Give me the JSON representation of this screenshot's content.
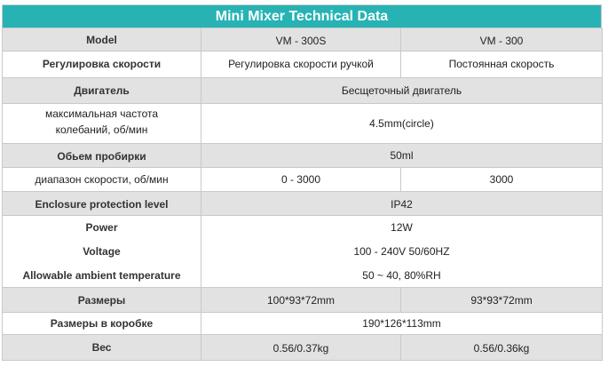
{
  "title": "Mini Mixer Technical Data",
  "rows": {
    "model": {
      "label": "Model",
      "v1": "VM - 300S",
      "v2": "VM - 300"
    },
    "speed_control": {
      "label": "Регулировка скорости",
      "v1": "Регулировка скорости ручкой",
      "v2": "Постоянная скорость"
    },
    "motor": {
      "label": "Двигатель",
      "value": "Бесщеточный двигатель"
    },
    "oscillation": {
      "label_line1": "максимальная частота",
      "label_line2": "колебаний, об/мин",
      "value": "4.5mm(circle)"
    },
    "tube_volume": {
      "label": "Обьем пробирки",
      "value": "50ml"
    },
    "speed_range": {
      "label": "диапазон скорости, об/мин",
      "v1": "0 - 3000",
      "v2": "3000"
    },
    "enclosure": {
      "label": "Enclosure protection level",
      "value": "IP42"
    },
    "power": {
      "label": "Power",
      "value": "12W"
    },
    "voltage": {
      "label": "Voltage",
      "value": "100 - 240V  50/60HZ"
    },
    "ambient": {
      "label": "Allowable ambient temperature",
      "value": "50 ~ 40, 80%RH"
    },
    "dimensions": {
      "label": "Размеры",
      "v1": "100*93*72mm",
      "v2": "93*93*72mm"
    },
    "box_dimensions": {
      "label": "Размеры в коробке",
      "value": "190*126*113mm"
    },
    "weight": {
      "label": "Вес",
      "v1": "0.56/0.37kg",
      "v2": "0.56/0.36kg"
    }
  }
}
